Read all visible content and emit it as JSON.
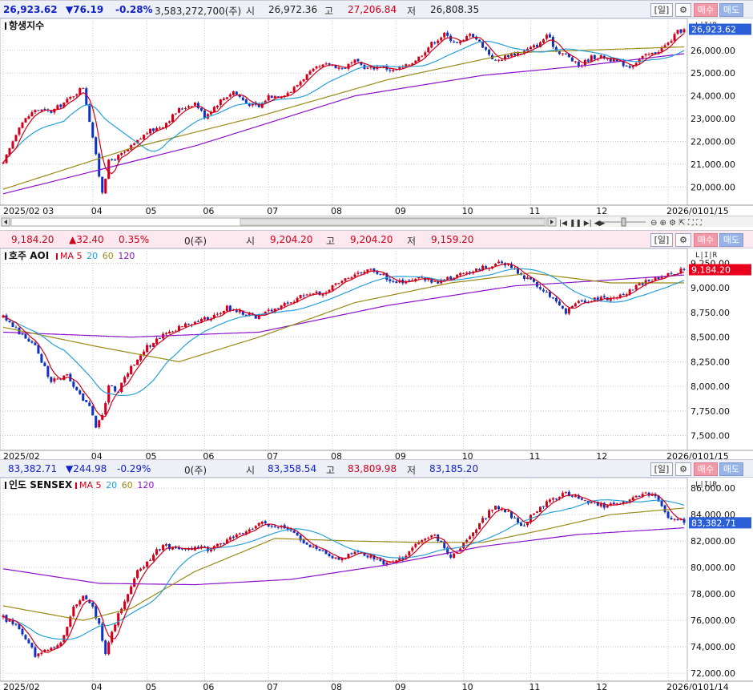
{
  "colors": {
    "up": "#d0001a",
    "down": "#1030c0",
    "ma5": "#d0001a",
    "ma20": "#27a0d8",
    "ma60": "#9a8a18",
    "ma120": "#8a12c8",
    "grid": "#c8c8d8"
  },
  "panels": [
    {
      "info": {
        "price": "26,923.62",
        "change": "▼76.19",
        "pct": "-0.28%",
        "volume": "3,583,272,700(주)",
        "open_label": "시",
        "open": "26,972.36",
        "high_label": "고",
        "high": "27,206.84",
        "low_label": "저",
        "low": "26,808.35"
      },
      "name": "항생지수",
      "ma_legend": null,
      "price_tag": "26,923.62",
      "last_date": "01/15",
      "tool_labels": {
        "period": "[일]",
        "buy": "매수",
        "sell": "매도"
      }
    },
    {
      "info": {
        "price": "9,184.20",
        "change": "▲32.40",
        "pct": "0.35%",
        "volume": "0(주)",
        "open_label": "시",
        "open": "9,204.20",
        "high_label": "고",
        "high": "9,204.20",
        "low_label": "저",
        "low": "9,159.20"
      },
      "name": "호주 AOI",
      "ma_legend": {
        "prefix": "MA",
        "p1": "5",
        "p2": "20",
        "p3": "60",
        "p4": "120"
      },
      "price_tag": "9,184.20",
      "last_date": "01/15",
      "tool_labels": {
        "period": "[일]",
        "buy": "매수",
        "sell": "매도"
      }
    },
    {
      "info": {
        "price": "83,382.71",
        "change": "▼244.98",
        "pct": "-0.29%",
        "volume": "0(주)",
        "open_label": "시",
        "open": "83,358.54",
        "high_label": "고",
        "high": "83,809.98",
        "low_label": "저",
        "low": "83,185.20"
      },
      "name": "인도 SENSEX",
      "ma_legend": {
        "prefix": "MA",
        "p1": "5",
        "p2": "20",
        "p3": "60",
        "p4": "120"
      },
      "price_tag": "83,382.71",
      "last_date": "01/14",
      "tool_labels": {
        "period": "[일]",
        "buy": "매수",
        "sell": "매도"
      }
    }
  ],
  "chart_data": [
    {
      "type": "candlestick",
      "title": "항생지수",
      "yticks": [
        20000,
        21000,
        22000,
        23000,
        24000,
        25000,
        26000
      ],
      "ytick_labels": [
        "20,000.00",
        "21,000.00",
        "22,000.00",
        "23,000.00",
        "24,000.00",
        "25,000.00",
        "26,000.00"
      ],
      "ylim": [
        19200,
        27400
      ],
      "x_labels": [
        "2025/02 03",
        "04",
        "05",
        "06",
        "07",
        "08",
        "09",
        "10",
        "11",
        "12",
        "2026/01"
      ],
      "x_label_index": [
        0,
        28,
        45,
        63,
        83,
        103,
        123,
        144,
        165,
        186,
        208
      ],
      "anchors": [
        [
          0,
          21000
        ],
        [
          5,
          22700
        ],
        [
          10,
          23400
        ],
        [
          15,
          23300
        ],
        [
          20,
          23800
        ],
        [
          25,
          24400
        ],
        [
          28,
          22200
        ],
        [
          30,
          20500
        ],
        [
          31,
          19800
        ],
        [
          33,
          21100
        ],
        [
          38,
          21500
        ],
        [
          42,
          22000
        ],
        [
          45,
          22400
        ],
        [
          50,
          22700
        ],
        [
          55,
          23400
        ],
        [
          60,
          23700
        ],
        [
          63,
          23100
        ],
        [
          68,
          23800
        ],
        [
          72,
          24200
        ],
        [
          76,
          23700
        ],
        [
          80,
          23500
        ],
        [
          83,
          24000
        ],
        [
          86,
          24000
        ],
        [
          90,
          24200
        ],
        [
          94,
          24800
        ],
        [
          98,
          25200
        ],
        [
          102,
          25400
        ],
        [
          106,
          25200
        ],
        [
          110,
          25500
        ],
        [
          114,
          25200
        ],
        [
          118,
          25300
        ],
        [
          122,
          25100
        ],
        [
          126,
          25300
        ],
        [
          130,
          25700
        ],
        [
          134,
          26300
        ],
        [
          138,
          26700
        ],
        [
          142,
          26300
        ],
        [
          144,
          26400
        ],
        [
          146,
          26800
        ],
        [
          150,
          26200
        ],
        [
          154,
          25500
        ],
        [
          158,
          25800
        ],
        [
          162,
          25900
        ],
        [
          165,
          26100
        ],
        [
          168,
          26300
        ],
        [
          170,
          26700
        ],
        [
          173,
          26000
        ],
        [
          176,
          25800
        ],
        [
          180,
          25300
        ],
        [
          184,
          25700
        ],
        [
          188,
          25700
        ],
        [
          192,
          25500
        ],
        [
          196,
          25300
        ],
        [
          200,
          25700
        ],
        [
          204,
          25900
        ],
        [
          208,
          26300
        ],
        [
          211,
          26800
        ],
        [
          213,
          26923.62
        ]
      ],
      "ma60_anchors": [
        [
          0,
          19900
        ],
        [
          40,
          21700
        ],
        [
          80,
          23100
        ],
        [
          120,
          24700
        ],
        [
          160,
          25900
        ],
        [
          213,
          26150
        ]
      ],
      "ma120_anchors": [
        [
          0,
          19700
        ],
        [
          60,
          21800
        ],
        [
          110,
          24000
        ],
        [
          150,
          24900
        ],
        [
          180,
          25300
        ],
        [
          213,
          25850
        ]
      ]
    },
    {
      "type": "candlestick",
      "title": "호주 AOI",
      "yticks": [
        7500,
        7750,
        8000,
        8250,
        8500,
        8750,
        9000,
        9250
      ],
      "ytick_labels": [
        "7,500.00",
        "7,750.00",
        "8,000.00",
        "8,250.00",
        "8,500.00",
        "8,750.00",
        "9,000.00",
        "9,250.00"
      ],
      "ylim": [
        7350,
        9400
      ],
      "x_labels": [
        "2025/02",
        "04",
        "05",
        "06",
        "07",
        "08",
        "09",
        "10",
        "11",
        "12",
        "2026/01"
      ],
      "x_label_index": [
        0,
        28,
        45,
        63,
        83,
        103,
        123,
        144,
        165,
        186,
        208
      ],
      "anchors": [
        [
          0,
          8700
        ],
        [
          5,
          8550
        ],
        [
          10,
          8400
        ],
        [
          15,
          8050
        ],
        [
          20,
          8100
        ],
        [
          23,
          7950
        ],
        [
          27,
          7800
        ],
        [
          29,
          7600
        ],
        [
          31,
          7700
        ],
        [
          33,
          8000
        ],
        [
          36,
          7950
        ],
        [
          40,
          8200
        ],
        [
          45,
          8400
        ],
        [
          50,
          8520
        ],
        [
          55,
          8600
        ],
        [
          60,
          8650
        ],
        [
          65,
          8700
        ],
        [
          70,
          8800
        ],
        [
          75,
          8750
        ],
        [
          80,
          8700
        ],
        [
          85,
          8800
        ],
        [
          90,
          8850
        ],
        [
          95,
          8950
        ],
        [
          100,
          8950
        ],
        [
          105,
          9050
        ],
        [
          110,
          9150
        ],
        [
          115,
          9200
        ],
        [
          120,
          9100
        ],
        [
          125,
          9050
        ],
        [
          130,
          9100
        ],
        [
          135,
          9050
        ],
        [
          140,
          9100
        ],
        [
          145,
          9150
        ],
        [
          150,
          9200
        ],
        [
          155,
          9250
        ],
        [
          160,
          9200
        ],
        [
          163,
          9100
        ],
        [
          166,
          9050
        ],
        [
          170,
          8950
        ],
        [
          173,
          8850
        ],
        [
          176,
          8750
        ],
        [
          180,
          8850
        ],
        [
          185,
          8880
        ],
        [
          190,
          8900
        ],
        [
          195,
          8950
        ],
        [
          200,
          9050
        ],
        [
          205,
          9100
        ],
        [
          210,
          9150
        ],
        [
          213,
          9184.2
        ]
      ],
      "ma60_anchors": [
        [
          0,
          8600
        ],
        [
          30,
          8400
        ],
        [
          55,
          8250
        ],
        [
          80,
          8500
        ],
        [
          110,
          8850
        ],
        [
          140,
          9050
        ],
        [
          165,
          9150
        ],
        [
          190,
          9050
        ],
        [
          213,
          9050
        ]
      ],
      "ma120_anchors": [
        [
          0,
          8550
        ],
        [
          40,
          8500
        ],
        [
          80,
          8550
        ],
        [
          120,
          8820
        ],
        [
          160,
          9020
        ],
        [
          190,
          9080
        ],
        [
          213,
          9130
        ]
      ]
    },
    {
      "type": "candlestick",
      "title": "인도 SENSEX",
      "yticks": [
        72000,
        74000,
        76000,
        78000,
        80000,
        82000,
        84000,
        86000
      ],
      "ytick_labels": [
        "72,000.00",
        "74,000.00",
        "76,000.00",
        "78,000.00",
        "80,000.00",
        "82,000.00",
        "84,000.00",
        "86,000.00"
      ],
      "ylim": [
        71400,
        86800
      ],
      "x_labels": [
        "2025/02",
        "04",
        "05",
        "06",
        "07",
        "08",
        "09",
        "10",
        "11",
        "12",
        "2026/01"
      ],
      "x_label_index": [
        0,
        28,
        45,
        63,
        83,
        103,
        123,
        144,
        165,
        186,
        208
      ],
      "anchors": [
        [
          0,
          76200
        ],
        [
          5,
          75500
        ],
        [
          8,
          74300
        ],
        [
          10,
          73300
        ],
        [
          14,
          73800
        ],
        [
          18,
          74300
        ],
        [
          22,
          77000
        ],
        [
          25,
          77700
        ],
        [
          28,
          76900
        ],
        [
          30,
          75600
        ],
        [
          32,
          73600
        ],
        [
          34,
          75200
        ],
        [
          38,
          77600
        ],
        [
          42,
          79700
        ],
        [
          46,
          80700
        ],
        [
          50,
          81700
        ],
        [
          55,
          81300
        ],
        [
          60,
          81500
        ],
        [
          65,
          81400
        ],
        [
          70,
          82100
        ],
        [
          75,
          82500
        ],
        [
          80,
          83400
        ],
        [
          85,
          83200
        ],
        [
          90,
          82700
        ],
        [
          95,
          81700
        ],
        [
          100,
          81200
        ],
        [
          105,
          80600
        ],
        [
          110,
          81200
        ],
        [
          115,
          80800
        ],
        [
          120,
          80200
        ],
        [
          125,
          80700
        ],
        [
          130,
          81900
        ],
        [
          135,
          82400
        ],
        [
          138,
          81500
        ],
        [
          140,
          80800
        ],
        [
          143,
          81600
        ],
        [
          146,
          82300
        ],
        [
          150,
          83600
        ],
        [
          154,
          84700
        ],
        [
          158,
          84200
        ],
        [
          162,
          83100
        ],
        [
          165,
          83800
        ],
        [
          168,
          84500
        ],
        [
          172,
          85300
        ],
        [
          176,
          85600
        ],
        [
          180,
          85300
        ],
        [
          184,
          84900
        ],
        [
          188,
          84600
        ],
        [
          192,
          84800
        ],
        [
          196,
          85200
        ],
        [
          200,
          85600
        ],
        [
          204,
          85400
        ],
        [
          207,
          84300
        ],
        [
          209,
          83500
        ],
        [
          211,
          83700
        ],
        [
          213,
          83382.71
        ]
      ],
      "ma60_anchors": [
        [
          0,
          77100
        ],
        [
          25,
          76000
        ],
        [
          40,
          76900
        ],
        [
          60,
          79700
        ],
        [
          85,
          82200
        ],
        [
          110,
          82000
        ],
        [
          130,
          81900
        ],
        [
          150,
          81900
        ],
        [
          170,
          82900
        ],
        [
          190,
          84000
        ],
        [
          213,
          84500
        ]
      ],
      "ma120_anchors": [
        [
          0,
          79900
        ],
        [
          30,
          78800
        ],
        [
          60,
          78700
        ],
        [
          90,
          79100
        ],
        [
          120,
          80200
        ],
        [
          150,
          81600
        ],
        [
          180,
          82500
        ],
        [
          213,
          83000
        ]
      ]
    }
  ]
}
